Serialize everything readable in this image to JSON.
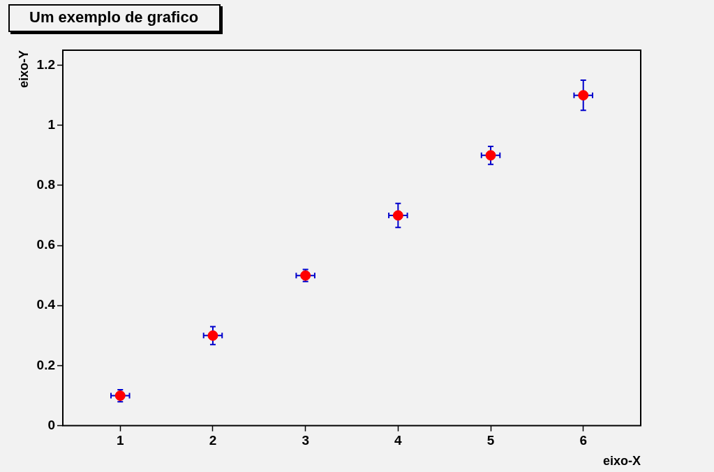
{
  "chart_data": {
    "type": "scatter",
    "title": "Um exemplo de grafico",
    "xlabel": "eixo-X",
    "ylabel": "eixo-Y",
    "x": [
      1,
      2,
      3,
      4,
      5,
      6
    ],
    "series": [
      {
        "color": "#ff0000",
        "values": [
          0.1,
          0.3,
          0.5,
          0.7,
          0.9,
          1.1
        ],
        "errors": [
          0.02,
          0.03,
          0.02,
          0.04,
          0.03,
          0.05
        ],
        "xerrors": [
          0.1,
          0.1,
          0.1,
          0.1,
          0.1,
          0.1
        ]
      }
    ],
    "marker": "circle",
    "grid": false,
    "legend": false,
    "xlim": [
      0.38,
      6.62
    ],
    "xticks": [
      1,
      2,
      3,
      4,
      5,
      6
    ],
    "ylim": [
      0,
      1.25
    ],
    "yticks": [
      0,
      0.2,
      0.4,
      0.6,
      0.8,
      1,
      1.2
    ]
  }
}
